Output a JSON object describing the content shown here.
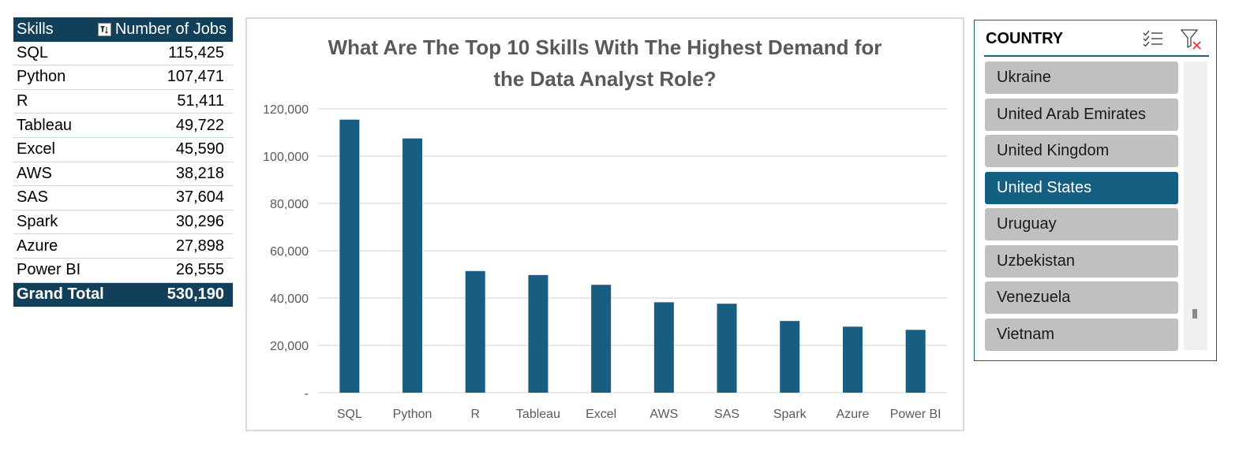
{
  "pivot": {
    "headers": {
      "skills": "Skills",
      "jobs": "Number of Jobs"
    },
    "rows": [
      {
        "skill": "SQL",
        "jobs": "115,425"
      },
      {
        "skill": "Python",
        "jobs": "107,471"
      },
      {
        "skill": "R",
        "jobs": "51,411"
      },
      {
        "skill": "Tableau",
        "jobs": "49,722"
      },
      {
        "skill": "Excel",
        "jobs": "45,590"
      },
      {
        "skill": "AWS",
        "jobs": "38,218"
      },
      {
        "skill": "SAS",
        "jobs": "37,604"
      },
      {
        "skill": "Spark",
        "jobs": "30,296"
      },
      {
        "skill": "Azure",
        "jobs": "27,898"
      },
      {
        "skill": "Power BI",
        "jobs": "26,555"
      }
    ],
    "total": {
      "label": "Grand Total",
      "value": "530,190"
    },
    "header_color": "#12405a"
  },
  "chart_data": {
    "type": "bar",
    "title_lines": [
      "What Are The Top 10 Skills With The Highest Demand for",
      "the Data Analyst Role?"
    ],
    "categories": [
      "SQL",
      "Python",
      "R",
      "Tableau",
      "Excel",
      "AWS",
      "SAS",
      "Spark",
      "Azure",
      "Power BI"
    ],
    "values": [
      115425,
      107471,
      51411,
      49722,
      45590,
      38218,
      37604,
      30296,
      27898,
      26555
    ],
    "ylim": [
      0,
      120000
    ],
    "yticks": [
      0,
      20000,
      40000,
      60000,
      80000,
      100000,
      120000
    ],
    "ytick_labels": [
      "-",
      "20,000",
      "40,000",
      "60,000",
      "80,000",
      "100,000",
      "120,000"
    ],
    "grid": true,
    "bar_color": "#185e82",
    "xlabel": "",
    "ylabel": ""
  },
  "slicer": {
    "title": "COUNTRY",
    "icons": [
      "multi-select-icon",
      "clear-filter-icon"
    ],
    "items": [
      "Ukraine",
      "United Arab Emirates",
      "United Kingdom",
      "United States",
      "Uruguay",
      "Uzbekistan",
      "Venezuela",
      "Vietnam"
    ],
    "selected": "United States",
    "selected_color": "#145f82",
    "item_color": "#c0c0c0"
  }
}
